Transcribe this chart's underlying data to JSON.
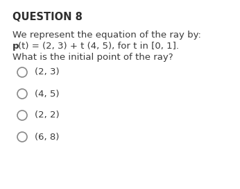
{
  "title": "QUESTION 8",
  "title_fontsize": 10.5,
  "title_fontweight": "bold",
  "title_color": "#2d2d2d",
  "line1": "We represent the equation of the ray by:",
  "line2_bold": "p",
  "line2_rest": "(t) = (2, 3) + t (4, 5), for t in [0, 1].",
  "line3": "What is the initial point of the ray?",
  "options": [
    "(2, 3)",
    "(4, 5)",
    "(2, 2)",
    "(6, 8)"
  ],
  "text_color": "#3a3a3a",
  "text_fontsize": 9.5,
  "background_color": "#ffffff",
  "circle_color": "#888888",
  "circle_linewidth": 1.2
}
